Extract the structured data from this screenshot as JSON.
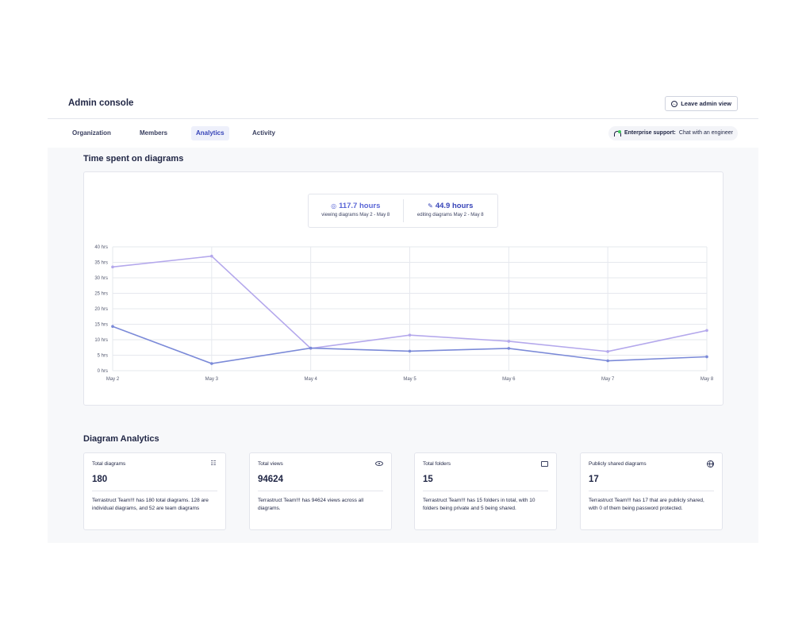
{
  "header": {
    "title": "Admin console",
    "leave_label": "Leave admin view"
  },
  "tabs": [
    {
      "label": "Organization",
      "active": false
    },
    {
      "label": "Members",
      "active": false
    },
    {
      "label": "Analytics",
      "active": true
    },
    {
      "label": "Activity",
      "active": false
    }
  ],
  "support": {
    "label": "Enterprise support:",
    "link": "Chat with an engineer"
  },
  "time_section": {
    "title": "Time spent on diagrams",
    "viewing": {
      "value": "117.7 hours",
      "label": "viewing diagrams May 2 - May 8",
      "icon": "eye-icon"
    },
    "editing": {
      "value": "44.9 hours",
      "label": "editing diagrams May 2 - May 8",
      "icon": "pencil-icon"
    }
  },
  "chart_data": {
    "type": "line",
    "x": [
      "May 2",
      "May 3",
      "May 4",
      "May 5",
      "May 6",
      "May 7",
      "May 8"
    ],
    "y_ticks": [
      "0 hrs",
      "5 hrs",
      "10 hrs",
      "15 hrs",
      "20 hrs",
      "25 hrs",
      "30 hrs",
      "35 hrs",
      "40 hrs"
    ],
    "ylim": [
      0,
      40
    ],
    "grid": true,
    "series": [
      {
        "values": [
          33.5,
          37,
          7.2,
          11.5,
          9.5,
          6.2,
          13
        ],
        "color": "#b4a8ec"
      },
      {
        "values": [
          14.3,
          2.3,
          7.3,
          6.3,
          7.2,
          3.2,
          4.5
        ],
        "color": "#7b8ad8"
      }
    ]
  },
  "diagram_section": {
    "title": "Diagram Analytics",
    "cards": [
      {
        "label": "Total diagrams",
        "value": "180",
        "icon": "sitemap-icon",
        "desc": "Terrastruct Team!!! has 180 total diagrams. 128 are individual diagrams, and 52 are team diagrams"
      },
      {
        "label": "Total views",
        "value": "94624",
        "icon": "eye-icon",
        "desc": "Terrastruct Team!!! has 94624 views across all diagrams."
      },
      {
        "label": "Total folders",
        "value": "15",
        "icon": "folder-icon",
        "desc": "Terrastruct Team!!! has 15 folders in total, with 10 folders being private and 5 being shared."
      },
      {
        "label": "Publicly shared diagrams",
        "value": "17",
        "icon": "globe-icon",
        "desc": "Terrastruct Team!!! has 17 that are publicly shared, with 0 of them being password protected."
      }
    ]
  }
}
